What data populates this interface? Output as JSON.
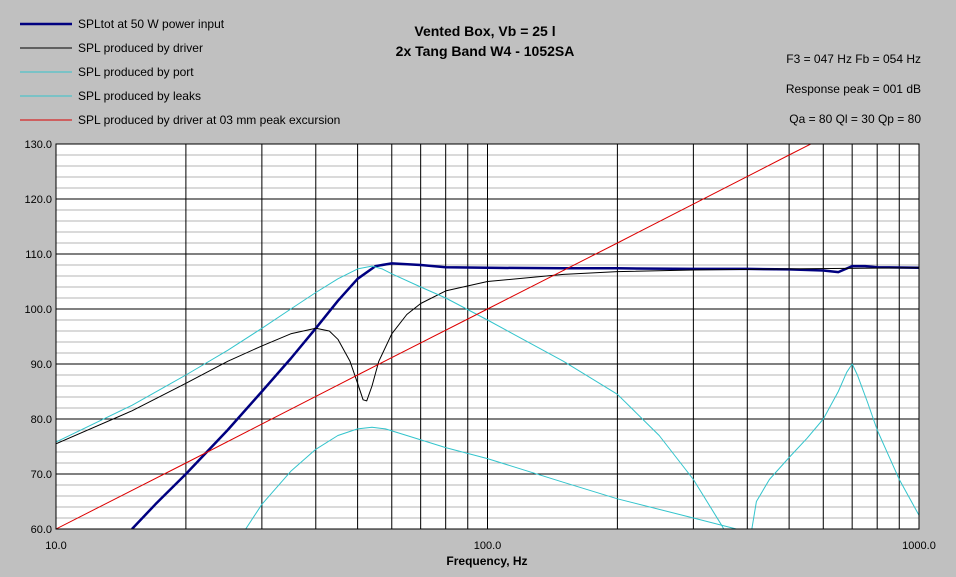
{
  "colors": {
    "background": "#c0c0c0",
    "plot_background": "#ffffff",
    "spl_total": "#000080",
    "spl_driver": "#000000",
    "spl_port": "#33c4cc",
    "spl_leaks": "#33c4cc",
    "spl_excursion": "#dd0000"
  },
  "legend_labels": {
    "spl_total": "SPLtot at 50 W power input",
    "spl_driver": "SPL produced by driver",
    "spl_port": "SPL produced by port",
    "spl_leaks": "SPL produced by leaks",
    "spl_excursion": "SPL produced by driver at 03 mm peak excursion"
  },
  "info": {
    "f3_fb": "F3 = 047 Hz  Fb = 054 Hz",
    "response_peak": "Response peak = 001 dB",
    "q_values": "Qa = 80  Ql = 30  Qp = 80"
  },
  "chart_data": {
    "type": "line",
    "title": "Vented Box, Vb = 25 l",
    "subtitle": "2x Tang Band W4 - 1052SA",
    "xlabel": "Frequency, Hz",
    "ylabel": "",
    "x_scale": "log",
    "xlim": [
      10,
      1000
    ],
    "ylim": [
      60,
      130
    ],
    "x_tick_labels": [
      "10.0",
      "100.0",
      "1000.0"
    ],
    "y_ticks": [
      60,
      70,
      80,
      90,
      100,
      110,
      120,
      130
    ],
    "y_tick_labels": [
      "60.0",
      "70.0",
      "80.0",
      "90.0",
      "100.0",
      "110.0",
      "120.0",
      "130.0"
    ],
    "grid": true,
    "legend_position": "top-left",
    "series": [
      {
        "key": "spl_total",
        "name": "SPLtot at 50 W power input",
        "x": [
          15,
          17,
          20,
          25,
          30,
          35,
          40,
          45,
          50,
          55,
          60,
          70,
          80,
          100,
          150,
          200,
          300,
          400,
          500,
          600,
          650,
          700,
          750,
          800,
          1000
        ],
        "y": [
          60,
          64.5,
          70,
          78,
          85,
          91,
          96.5,
          101.5,
          105.5,
          107.8,
          108.3,
          108,
          107.6,
          107.5,
          107.4,
          107.4,
          107.3,
          107.3,
          107.2,
          107,
          106.7,
          107.8,
          107.8,
          107.6,
          107.5
        ]
      },
      {
        "key": "spl_driver",
        "name": "SPL produced by driver",
        "x": [
          10,
          15,
          20,
          25,
          30,
          35,
          40,
          43,
          45,
          48,
          50,
          51.5,
          52.5,
          54,
          56,
          60,
          65,
          70,
          80,
          100,
          150,
          200,
          300,
          500,
          1000
        ],
        "y": [
          75.5,
          81.5,
          86.5,
          90.5,
          93.3,
          95.5,
          96.5,
          96,
          94.5,
          90.5,
          86.5,
          83.5,
          83.3,
          86,
          90.5,
          95.5,
          99,
          101,
          103.3,
          105,
          106.3,
          106.8,
          107.1,
          107.3,
          107.5
        ]
      },
      {
        "key": "spl_port",
        "name": "SPL produced by port",
        "x": [
          10,
          15,
          20,
          25,
          30,
          35,
          40,
          45,
          50,
          54,
          57,
          60,
          70,
          80,
          100,
          150,
          200,
          250,
          300,
          350,
          380
        ],
        "y": [
          75.8,
          82.5,
          88,
          92.5,
          96.5,
          100,
          103,
          105.5,
          107.3,
          107.8,
          107.3,
          106.4,
          104,
          102,
          98,
          90.5,
          84.5,
          77,
          69,
          60.5,
          55
        ]
      },
      {
        "key": "spl_leaks",
        "name": "SPL produced by leaks",
        "x": [
          25,
          30,
          35,
          40,
          45,
          50,
          54,
          58,
          65,
          80,
          100,
          150,
          200,
          300,
          400
        ],
        "y": [
          55,
          64.5,
          70.5,
          74.5,
          77,
          78.2,
          78.5,
          78.2,
          77,
          74.8,
          72.8,
          68.5,
          65.5,
          62,
          59.5
        ]
      },
      {
        "key": "spl_leaks_high",
        "name": "SPL produced by leaks",
        "x": [
          400,
          420,
          450,
          500,
          550,
          600,
          650,
          680,
          700,
          720,
          760,
          800,
          900,
          1000
        ],
        "y": [
          55,
          65,
          69,
          73,
          76.5,
          80,
          85,
          88.5,
          90,
          88,
          83,
          78,
          69,
          62.5
        ]
      },
      {
        "key": "spl_excursion",
        "name": "SPL produced by driver at 03 mm peak excursion",
        "x": [
          10,
          20,
          50,
          100,
          200,
          500,
          750
        ],
        "y": [
          60,
          72,
          88,
          100,
          112,
          128,
          135
        ]
      }
    ]
  }
}
